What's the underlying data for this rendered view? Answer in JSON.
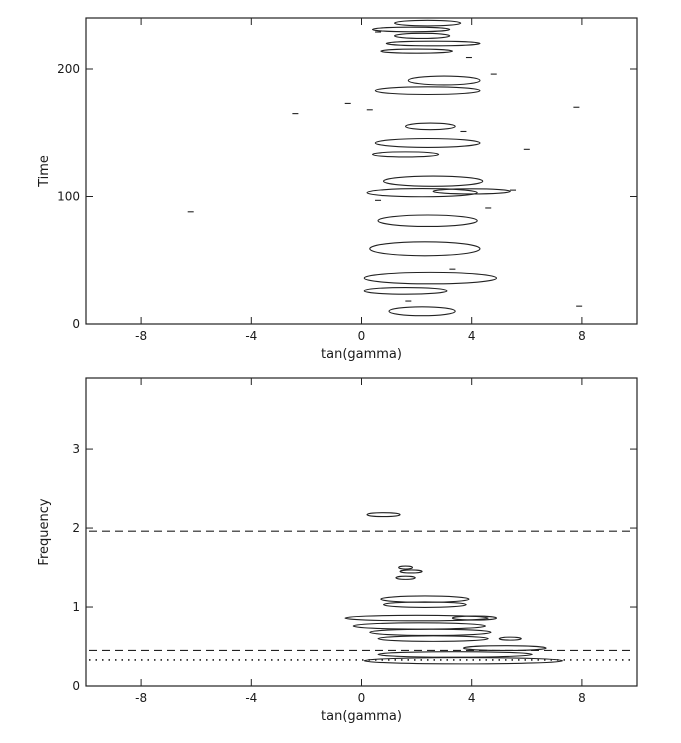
{
  "chart_data": [
    {
      "type": "contour",
      "xlabel": "tan(gamma)",
      "ylabel": "Time",
      "xlim": [
        -10,
        10
      ],
      "ylim": [
        0,
        240
      ],
      "xticks": [
        {
          "v": -8,
          "label": "-8"
        },
        {
          "v": -4,
          "label": "-4"
        },
        {
          "v": 0,
          "label": "0"
        },
        {
          "v": 4,
          "label": "4"
        },
        {
          "v": 8,
          "label": "8"
        }
      ],
      "yticks": [
        {
          "v": 0,
          "label": "0"
        },
        {
          "v": 100,
          "label": "100"
        },
        {
          "v": 200,
          "label": "200"
        }
      ],
      "contours": [
        {
          "cx": 2.4,
          "y": 236,
          "rx": 1.2,
          "ry": 2.2
        },
        {
          "cx": 1.8,
          "y": 231,
          "rx": 1.4,
          "ry": 1.8
        },
        {
          "cx": 2.2,
          "y": 226,
          "rx": 1.0,
          "ry": 2.0
        },
        {
          "cx": 2.6,
          "y": 220,
          "rx": 1.7,
          "ry": 1.8
        },
        {
          "cx": 2.0,
          "y": 214,
          "rx": 1.3,
          "ry": 1.6
        },
        {
          "cx": 3.0,
          "y": 191,
          "rx": 1.3,
          "ry": 3.5
        },
        {
          "cx": 2.4,
          "y": 183,
          "rx": 1.9,
          "ry": 3.0
        },
        {
          "cx": 2.5,
          "y": 155,
          "rx": 0.9,
          "ry": 2.6
        },
        {
          "cx": 2.4,
          "y": 142,
          "rx": 1.9,
          "ry": 3.5
        },
        {
          "cx": 1.6,
          "y": 133,
          "rx": 1.2,
          "ry": 2.0
        },
        {
          "cx": 2.6,
          "y": 112,
          "rx": 1.8,
          "ry": 4.0
        },
        {
          "cx": 2.2,
          "y": 103,
          "rx": 2.0,
          "ry": 3.2
        },
        {
          "cx": 4.0,
          "y": 104,
          "rx": 1.4,
          "ry": 2.0
        },
        {
          "cx": 2.4,
          "y": 81,
          "rx": 1.8,
          "ry": 4.5
        },
        {
          "cx": 2.3,
          "y": 59,
          "rx": 2.0,
          "ry": 5.5
        },
        {
          "cx": 2.5,
          "y": 36,
          "rx": 2.4,
          "ry": 4.5
        },
        {
          "cx": 1.6,
          "y": 26,
          "rx": 1.5,
          "ry": 2.6
        },
        {
          "cx": 2.2,
          "y": 10,
          "rx": 1.2,
          "ry": 3.5
        }
      ],
      "dashes": [
        {
          "x": 0.6,
          "y": 229
        },
        {
          "x": 3.9,
          "y": 209
        },
        {
          "x": 4.8,
          "y": 196
        },
        {
          "x": -0.5,
          "y": 173
        },
        {
          "x": -2.4,
          "y": 165
        },
        {
          "x": 0.3,
          "y": 168
        },
        {
          "x": 6.0,
          "y": 137
        },
        {
          "x": 3.7,
          "y": 151
        },
        {
          "x": 5.5,
          "y": 105
        },
        {
          "x": 0.6,
          "y": 97
        },
        {
          "x": 4.6,
          "y": 91
        },
        {
          "x": 3.3,
          "y": 43
        },
        {
          "x": 7.8,
          "y": 170
        },
        {
          "x": -6.2,
          "y": 88
        },
        {
          "x": 7.9,
          "y": 14
        },
        {
          "x": 1.7,
          "y": 18
        }
      ]
    },
    {
      "type": "contour",
      "xlabel": "tan(gamma)",
      "ylabel": "Frequency",
      "xlim": [
        -10,
        10
      ],
      "ylim": [
        0,
        3.9
      ],
      "xticks": [
        {
          "v": -8,
          "label": "-8"
        },
        {
          "v": -4,
          "label": "-4"
        },
        {
          "v": 0,
          "label": "0"
        },
        {
          "v": 4,
          "label": "4"
        },
        {
          "v": 8,
          "label": "8"
        }
      ],
      "yticks": [
        {
          "v": 0,
          "label": "0"
        },
        {
          "v": 1,
          "label": "1"
        },
        {
          "v": 2,
          "label": "2"
        },
        {
          "v": 3,
          "label": "3"
        }
      ],
      "reference_lines": [
        {
          "y": 1.96,
          "style": "dashed"
        },
        {
          "y": 0.45,
          "style": "dashed"
        },
        {
          "y": 0.33,
          "style": "dotted"
        }
      ],
      "contours": [
        {
          "cx": 0.8,
          "y": 2.17,
          "rx": 0.6,
          "ry": 0.025
        },
        {
          "cx": 1.6,
          "y": 1.5,
          "rx": 0.25,
          "ry": 0.015
        },
        {
          "cx": 1.8,
          "y": 1.45,
          "rx": 0.4,
          "ry": 0.015
        },
        {
          "cx": 1.6,
          "y": 1.37,
          "rx": 0.35,
          "ry": 0.02
        },
        {
          "cx": 2.3,
          "y": 1.1,
          "rx": 1.6,
          "ry": 0.04
        },
        {
          "cx": 2.3,
          "y": 1.03,
          "rx": 1.5,
          "ry": 0.035
        },
        {
          "cx": 2.0,
          "y": 0.86,
          "rx": 2.6,
          "ry": 0.035
        },
        {
          "cx": 2.1,
          "y": 0.76,
          "rx": 2.4,
          "ry": 0.04
        },
        {
          "cx": 2.5,
          "y": 0.68,
          "rx": 2.2,
          "ry": 0.04
        },
        {
          "cx": 2.6,
          "y": 0.6,
          "rx": 2.0,
          "ry": 0.035
        },
        {
          "cx": 4.1,
          "y": 0.86,
          "rx": 0.8,
          "ry": 0.025
        },
        {
          "cx": 5.4,
          "y": 0.6,
          "rx": 0.4,
          "ry": 0.015
        },
        {
          "cx": 5.2,
          "y": 0.48,
          "rx": 1.5,
          "ry": 0.03
        },
        {
          "cx": 3.4,
          "y": 0.4,
          "rx": 2.8,
          "ry": 0.035
        },
        {
          "cx": 3.7,
          "y": 0.32,
          "rx": 3.6,
          "ry": 0.04
        }
      ]
    }
  ]
}
